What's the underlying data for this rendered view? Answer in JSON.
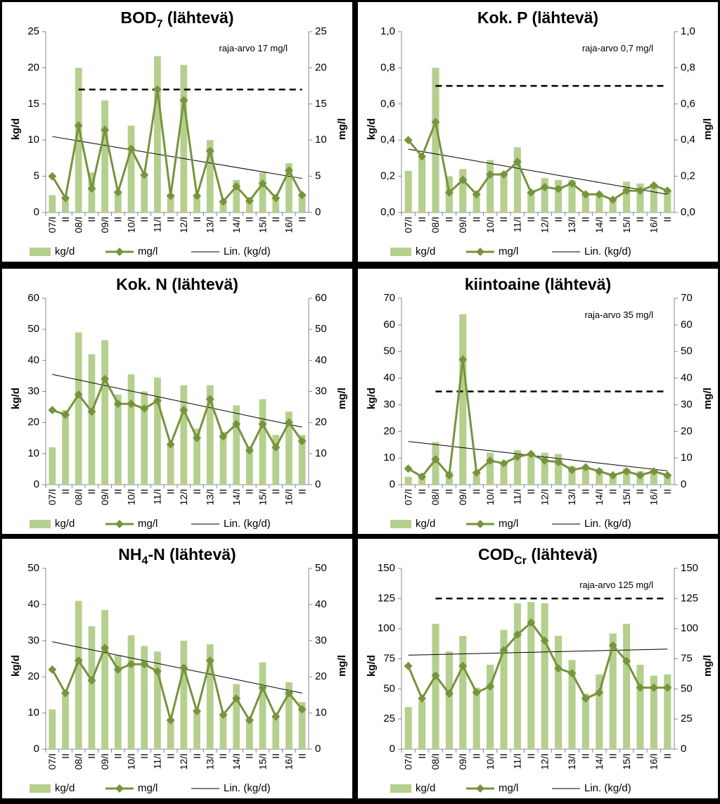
{
  "chart_data": [
    {
      "type": "combo",
      "title": "BOD",
      "title_sub": "7",
      "title_rest": " (lähtevä)",
      "y_label": "kg/d",
      "y2_label": "mg/l",
      "categories": [
        "07/I",
        "II",
        "08/I",
        "II",
        "09/I",
        "II",
        "10/I",
        "II",
        "11/I",
        "II",
        "12/I",
        "II",
        "13/I",
        "II",
        "14/I",
        "II",
        "15/I",
        "II",
        "16/I",
        "II"
      ],
      "series": [
        {
          "name": "kg/d",
          "color": "#b5cf8e",
          "values": [
            2.4,
            2.0,
            20,
            5.5,
            15.5,
            2.8,
            12,
            5,
            21.6,
            2.5,
            20.4,
            2.5,
            10,
            1.6,
            4.5,
            2,
            5.5,
            2,
            6.8,
            2.5
          ]
        },
        {
          "name": "mg/l",
          "color": "#77933c",
          "axis": "y2",
          "values": [
            5,
            2,
            12,
            3.3,
            11.4,
            2.8,
            8.8,
            5.2,
            17,
            2.3,
            15.5,
            2.3,
            8.5,
            1.5,
            3.6,
            1.6,
            4,
            2,
            5.8,
            2.4
          ]
        }
      ],
      "trend": {
        "name": "Lin. (kg/d)",
        "color": "#000000",
        "values": [
          10.5,
          4.7
        ]
      },
      "limit": {
        "label": "raja-arvo 17 mg/l",
        "value": 17
      },
      "ylim": [
        0,
        25
      ],
      "yticks": [
        0,
        5,
        10,
        15,
        20,
        25
      ],
      "y2lim": [
        0,
        25
      ],
      "y2ticks": [
        0,
        5,
        10,
        15,
        20,
        25
      ]
    },
    {
      "type": "combo",
      "title": "Kok. P (lähtevä)",
      "y_label": "kg/d",
      "y2_label": "mg/l",
      "categories": [
        "07/I",
        "II",
        "08/I",
        "II",
        "09/I",
        "II",
        "10/I",
        "II",
        "11/I",
        "II",
        "12/I",
        "II",
        "13/I",
        "II",
        "14/I",
        "II",
        "15/I",
        "II",
        "16/I",
        "II"
      ],
      "series": [
        {
          "name": "kg/d",
          "color": "#b5cf8e",
          "values": [
            0.23,
            0.3,
            0.8,
            0.2,
            0.24,
            0.1,
            0.29,
            0.22,
            0.36,
            0.11,
            0.19,
            0.18,
            0.18,
            0.1,
            0.09,
            0.08,
            0.17,
            0.16,
            0.15,
            0.12
          ]
        },
        {
          "name": "mg/l",
          "color": "#77933c",
          "axis": "y2",
          "values": [
            0.4,
            0.31,
            0.5,
            0.11,
            0.18,
            0.1,
            0.21,
            0.21,
            0.28,
            0.11,
            0.14,
            0.13,
            0.16,
            0.1,
            0.1,
            0.07,
            0.12,
            0.12,
            0.15,
            0.12
          ]
        }
      ],
      "trend": {
        "name": "Lin. (kg/d)",
        "color": "#000000",
        "values": [
          0.35,
          0.1
        ]
      },
      "limit": {
        "label": "raja-arvo 0,7 mg/l",
        "value": 0.7
      },
      "ylim": [
        0,
        1
      ],
      "yticks": [
        {
          "value": 0,
          "label": "0,0"
        },
        {
          "value": 0.2,
          "label": "0,2"
        },
        {
          "value": 0.4,
          "label": "0,4"
        },
        {
          "value": 0.6,
          "label": "0,6"
        },
        {
          "value": 0.8,
          "label": "0,8"
        },
        {
          "value": 1,
          "label": "1,0"
        }
      ],
      "y2lim": [
        0,
        1
      ],
      "y2ticks": [
        {
          "value": 0,
          "label": "0,0"
        },
        {
          "value": 0.2,
          "label": "0,2"
        },
        {
          "value": 0.4,
          "label": "0,4"
        },
        {
          "value": 0.6,
          "label": "0,6"
        },
        {
          "value": 0.8,
          "label": "0,8"
        },
        {
          "value": 1,
          "label": "1,0"
        }
      ]
    },
    {
      "type": "combo",
      "title": "Kok. N (lähtevä)",
      "y_label": "kg/d",
      "y2_label": "mg/l",
      "categories": [
        "07/I",
        "II",
        "08/I",
        "II",
        "09/I",
        "II",
        "10/I",
        "II",
        "11/I",
        "II",
        "12/I",
        "II",
        "13/I",
        "II",
        "14/I",
        "II",
        "15/I",
        "II",
        "16/I",
        "II"
      ],
      "series": [
        {
          "name": "kg/d",
          "color": "#b5cf8e",
          "values": [
            12,
            24,
            49,
            42,
            46.5,
            29,
            35.5,
            30,
            34.5,
            13,
            32,
            18,
            32,
            17,
            25.5,
            12,
            27.5,
            16,
            23.5,
            16
          ]
        },
        {
          "name": "mg/l",
          "color": "#77933c",
          "axis": "y2",
          "values": [
            24,
            22.5,
            29,
            23.5,
            34,
            26,
            26,
            24.5,
            27,
            13,
            24,
            15,
            27.5,
            15.5,
            19.5,
            11,
            19.5,
            12,
            20,
            14
          ]
        }
      ],
      "trend": {
        "name": "Lin. (kg/d)",
        "color": "#000000",
        "values": [
          35.5,
          18.5
        ]
      },
      "ylim": [
        0,
        60
      ],
      "yticks": [
        0,
        10,
        20,
        30,
        40,
        50,
        60
      ],
      "y2lim": [
        0,
        60
      ],
      "y2ticks": [
        0,
        10,
        20,
        30,
        40,
        50,
        60
      ]
    },
    {
      "type": "combo",
      "title": "kiintoaine (lähtevä)",
      "y_label": "kg/d",
      "y2_label": "mg/l",
      "categories": [
        "07/I",
        "II",
        "08/I",
        "II",
        "09/I",
        "II",
        "10/I",
        "II",
        "11/I",
        "II",
        "12/I",
        "II",
        "13/I",
        "II",
        "14/I",
        "II",
        "15/I",
        "II",
        "16/I",
        "II"
      ],
      "series": [
        {
          "name": "kg/d",
          "color": "#b5cf8e",
          "values": [
            3,
            3,
            16,
            5,
            64,
            5,
            12,
            8,
            13,
            12,
            12,
            11.5,
            7,
            6,
            6,
            4,
            6,
            5,
            5.5,
            4
          ]
        },
        {
          "name": "mg/l",
          "color": "#77933c",
          "axis": "y2",
          "values": [
            6,
            3,
            9.5,
            3.5,
            47,
            4.5,
            9,
            8,
            10.5,
            11.5,
            9,
            8.5,
            5.5,
            6.5,
            5,
            3.5,
            5,
            3.5,
            5,
            3.5
          ]
        }
      ],
      "trend": {
        "name": "Lin. (kg/d)",
        "color": "#000000",
        "values": [
          16.2,
          5.2
        ]
      },
      "limit": {
        "label": "raja-arvo 35 mg/l",
        "value": 35
      },
      "ylim": [
        0,
        70
      ],
      "yticks": [
        0,
        10,
        20,
        30,
        40,
        50,
        60,
        70
      ],
      "y2lim": [
        0,
        70
      ],
      "y2ticks": [
        0,
        10,
        20,
        30,
        40,
        50,
        60,
        70
      ]
    },
    {
      "type": "combo",
      "title": "NH",
      "title_sub": "4",
      "title_rest": "-N (lähtevä)",
      "y_label": "kg/d",
      "y2_label": "mg/l",
      "categories": [
        "07/I",
        "II",
        "08/I",
        "II",
        "09/I",
        "II",
        "10/I",
        "II",
        "11/I",
        "II",
        "12/I",
        "II",
        "13/I",
        "II",
        "14/I",
        "II",
        "15/I",
        "II",
        "16/I",
        "II"
      ],
      "series": [
        {
          "name": "kg/d",
          "color": "#b5cf8e",
          "values": [
            11,
            16,
            41,
            34,
            38.5,
            26,
            31.5,
            28.5,
            27,
            8.5,
            30,
            11,
            29,
            9.5,
            18,
            8.5,
            24,
            9.5,
            18.5,
            13
          ]
        },
        {
          "name": "mg/l",
          "color": "#77933c",
          "axis": "y2",
          "values": [
            22,
            15.5,
            24.5,
            19,
            28,
            22,
            23.5,
            23.5,
            21.5,
            8,
            22.5,
            10.5,
            24.5,
            9.5,
            14,
            8,
            17,
            9,
            15.5,
            11
          ]
        }
      ],
      "trend": {
        "name": "Lin. (kg/d)",
        "color": "#000000",
        "values": [
          29.7,
          15.5
        ]
      },
      "ylim": [
        0,
        50
      ],
      "yticks": [
        0,
        10,
        20,
        30,
        40,
        50
      ],
      "y2lim": [
        0,
        50
      ],
      "y2ticks": [
        0,
        10,
        20,
        30,
        40,
        50
      ]
    },
    {
      "type": "combo",
      "title": "COD",
      "title_sub": "Cr",
      "title_rest": " (lähtevä)",
      "y_label": "kg/d",
      "y2_label": "mg/l",
      "categories": [
        "07/I",
        "II",
        "08/I",
        "II",
        "09/I",
        "II",
        "10/I",
        "II",
        "11/I",
        "II",
        "12/I",
        "II",
        "13/I",
        "II",
        "14/I",
        "II",
        "15/I",
        "II",
        "16/I",
        "II"
      ],
      "series": [
        {
          "name": "kg/d",
          "color": "#b5cf8e",
          "values": [
            35,
            40,
            104,
            81,
            94,
            51,
            70,
            99,
            121,
            122,
            121,
            94,
            74,
            46,
            62,
            96,
            104,
            70,
            61,
            62
          ]
        },
        {
          "name": "mg/l",
          "color": "#77933c",
          "axis": "y2",
          "values": [
            69,
            42,
            61,
            46,
            69,
            47,
            52,
            82,
            95,
            105,
            90,
            67,
            63,
            42,
            47,
            86,
            73,
            51,
            51,
            51
          ]
        }
      ],
      "trend": {
        "name": "Lin. (kg/d)",
        "color": "#000000",
        "values": [
          78,
          83
        ]
      },
      "limit": {
        "label": "raja-arvo 125 mg/l",
        "value": 125
      },
      "ylim": [
        0,
        150
      ],
      "yticks": [
        0,
        25,
        50,
        75,
        100,
        125,
        150
      ],
      "y2lim": [
        0,
        150
      ],
      "y2ticks": [
        0,
        25,
        50,
        75,
        100,
        125,
        150
      ]
    }
  ]
}
